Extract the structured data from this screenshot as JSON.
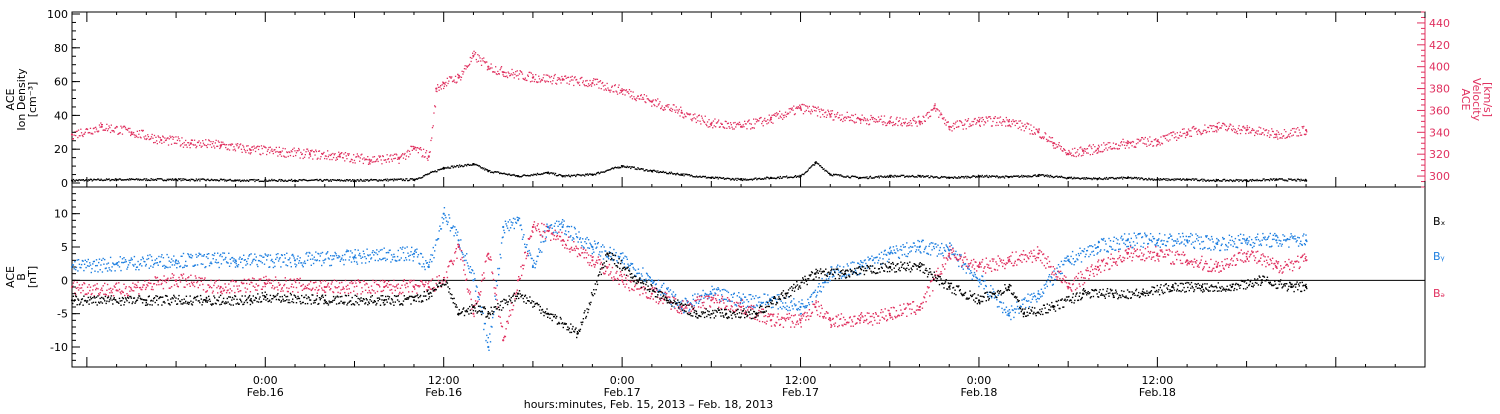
{
  "chart_data": [
    {
      "type": "line",
      "panel": "top",
      "title": "",
      "ylabel_left": [
        "ACE",
        "Ion Density",
        "[cm⁻³]"
      ],
      "ylabel_right": [
        "ACE",
        "Velocity",
        "[km/s]"
      ],
      "ylim_left": [
        0,
        100
      ],
      "yticks_left": [
        "0",
        "20",
        "40",
        "60",
        "80",
        "100"
      ],
      "ylim_right": [
        290,
        450
      ],
      "yticks_right": [
        "300",
        "320",
        "340",
        "360",
        "380",
        "400",
        "420",
        "440"
      ],
      "grid": false,
      "series": [
        {
          "name": "",
          "axis": "left",
          "color": "#000000",
          "x_hours": [
            -13,
            -10,
            -6,
            -2,
            2,
            6,
            10,
            12,
            14,
            15,
            17,
            19,
            20,
            22,
            24,
            26,
            28,
            30,
            32,
            34,
            36,
            37,
            38,
            40,
            42,
            44,
            46,
            48,
            50,
            52,
            54,
            56,
            58,
            60,
            62,
            64,
            66,
            68,
            70
          ],
          "values": [
            1.5,
            2,
            2,
            1.5,
            1.5,
            1.5,
            2,
            9,
            11,
            7,
            4,
            6,
            4,
            5,
            10,
            7,
            5,
            3,
            2,
            3,
            4,
            12,
            5,
            3,
            4,
            4,
            3,
            4,
            3.5,
            4.5,
            3,
            2.5,
            3,
            2,
            2,
            1.5,
            1.5,
            2,
            1.5
          ]
        },
        {
          "name": "",
          "axis": "right",
          "color": "#e0305f",
          "x_hours": [
            -13,
            -11,
            -9,
            -7,
            -5,
            -3,
            -1,
            1,
            3,
            5,
            7,
            9,
            10,
            11,
            11.5,
            12,
            13,
            14,
            15,
            16,
            18,
            20,
            22,
            24,
            26,
            28,
            30,
            32,
            34,
            36,
            38,
            40,
            42,
            44,
            45,
            46,
            48,
            50,
            52,
            53,
            54,
            55,
            56,
            58,
            60,
            62,
            64,
            66,
            68,
            70
          ],
          "values": [
            338,
            345,
            340,
            333,
            330,
            328,
            324,
            322,
            320,
            318,
            315,
            316,
            325,
            318,
            380,
            385,
            390,
            410,
            400,
            395,
            390,
            388,
            385,
            378,
            368,
            358,
            348,
            345,
            352,
            362,
            356,
            352,
            350,
            350,
            362,
            345,
            350,
            350,
            340,
            330,
            320,
            323,
            325,
            330,
            332,
            340,
            345,
            342,
            338,
            342
          ]
        }
      ]
    },
    {
      "type": "line",
      "panel": "bottom",
      "title": "",
      "ylabel": [
        "ACE",
        "B",
        "[nT]"
      ],
      "ylim": [
        -13,
        14
      ],
      "yticks": [
        "-10",
        "-5",
        "0",
        "5",
        "10"
      ],
      "zero_line": true,
      "grid": false,
      "legend_position": "right",
      "series": [
        {
          "name": "Bₓ",
          "color": "#000000",
          "x_hours": [
            -13,
            -8,
            -4,
            -1,
            0,
            4,
            8,
            10,
            11,
            12,
            13,
            14,
            15,
            17,
            19,
            21,
            23,
            25,
            27,
            29,
            31,
            33,
            35,
            37,
            39,
            42,
            44,
            46,
            48,
            50,
            51,
            53,
            55,
            57,
            59,
            61,
            63,
            65,
            67,
            69,
            70
          ],
          "values": [
            -3,
            -3,
            -3,
            -3,
            -2.5,
            -3,
            -3,
            -3,
            -2,
            0,
            -5,
            -4,
            -5,
            -2,
            -5,
            -8,
            4,
            0,
            -3,
            -5,
            -5,
            -5,
            -2,
            1,
            1,
            2,
            2,
            -1,
            -3,
            -1,
            -5,
            -4,
            -2,
            -2,
            -2,
            -1,
            -1,
            -1,
            0,
            -1,
            -1
          ]
        },
        {
          "name": "Bᵧ",
          "color": "#1e7fe0",
          "x_hours": [
            -13,
            -10,
            -6,
            -2,
            2,
            6,
            10,
            11,
            12,
            13,
            14,
            15,
            16,
            17,
            18,
            19,
            20,
            22,
            24,
            26,
            28,
            30,
            32,
            34,
            36,
            38,
            40,
            42,
            44,
            46,
            48,
            50,
            52,
            54,
            56,
            58,
            60,
            62,
            64,
            66,
            68,
            70
          ],
          "values": [
            2,
            2.5,
            3,
            3,
            3,
            3.5,
            4,
            2,
            10,
            6,
            0,
            -10,
            8,
            9,
            2,
            8,
            8,
            5,
            3,
            0,
            -4,
            -2,
            -3,
            -3,
            -4,
            1,
            2,
            4,
            5,
            4.5,
            0,
            -5,
            -2,
            3,
            5,
            6,
            6,
            6,
            5.5,
            6,
            6,
            6
          ]
        },
        {
          "name": "Bₔ",
          "color": "#e0305f",
          "x_hours": [
            -13,
            -10,
            -6,
            -3,
            0,
            4,
            8,
            10,
            11,
            12,
            13,
            14,
            15,
            16,
            17,
            18,
            20,
            22,
            24,
            26,
            28,
            30,
            32,
            34,
            36,
            37,
            38,
            40,
            42,
            44,
            46,
            48,
            50,
            52,
            54,
            56,
            58,
            60,
            62,
            64,
            66,
            68,
            70
          ],
          "values": [
            -1,
            -1.5,
            0,
            -1,
            -0.5,
            -1,
            -1,
            -1,
            -1,
            0,
            5,
            -5,
            4,
            -9,
            0,
            8,
            6,
            3,
            0,
            -2,
            -4,
            -3,
            -4,
            -6,
            -6,
            -4,
            -6,
            -6,
            -5,
            -4,
            4,
            2,
            3,
            4,
            -1,
            2,
            4,
            4,
            3,
            2,
            4,
            2,
            3
          ]
        }
      ]
    }
  ],
  "axis": {
    "xlim_hours": [
      -13,
      78
    ],
    "ticks": [
      {
        "hours": 0,
        "time": "0:00",
        "date": "Feb.16"
      },
      {
        "hours": 12,
        "time": "12:00",
        "date": "Feb.16"
      },
      {
        "hours": 24,
        "time": "0:00",
        "date": "Feb.17"
      },
      {
        "hours": 36,
        "time": "12:00",
        "date": "Feb.17"
      },
      {
        "hours": 48,
        "time": "0:00",
        "date": "Feb.18"
      },
      {
        "hours": 60,
        "time": "12:00",
        "date": "Feb.18"
      }
    ],
    "xlabel": "hours:minutes, Feb. 15, 2013 – Feb. 18, 2013"
  }
}
